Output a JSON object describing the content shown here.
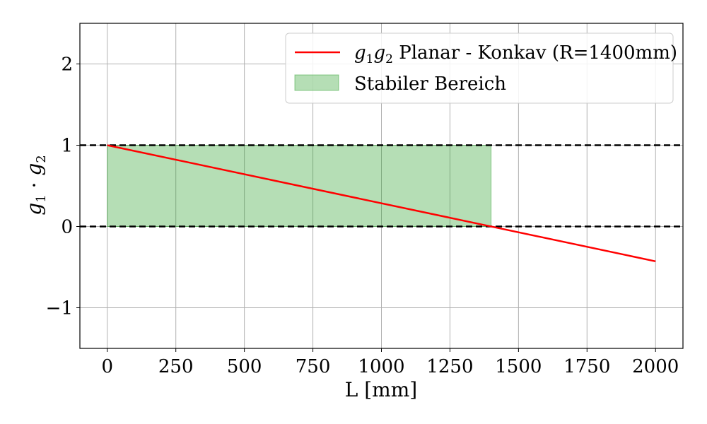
{
  "chart_data": {
    "type": "line",
    "xlabel": "L [mm]",
    "ylabel": "g₁ · g₂",
    "xlim": [
      -100,
      2100
    ],
    "ylim": [
      -1.5,
      2.5
    ],
    "xticks": [
      0,
      250,
      500,
      750,
      1000,
      1250,
      1500,
      1750,
      2000
    ],
    "xtick_labels": [
      "0",
      "250",
      "500",
      "750",
      "1000",
      "1250",
      "1500",
      "1750",
      "2000"
    ],
    "yticks": [
      -1,
      0,
      1,
      2
    ],
    "ytick_labels": [
      "−1",
      "0",
      "1",
      "2"
    ],
    "grid": true,
    "legend_position": "top-right",
    "series": [
      {
        "name": "g₁g₂ Planar - Konkav (R=1400mm)",
        "legend_label": {
          "var1": "g",
          "sub1": "1",
          "var2": "g",
          "sub2": "2",
          "rest": " Planar - Konkav (R=1400mm)"
        },
        "kind": "line",
        "color": "#ff0000",
        "x": [
          0,
          2000
        ],
        "y": [
          1.0,
          -0.4286
        ]
      },
      {
        "name": "Stabiler Bereich",
        "kind": "fill_between",
        "color": "#2ca02c",
        "opacity": 0.35,
        "x": [
          0,
          1400
        ],
        "y_low": 0,
        "y_high": 1
      }
    ],
    "reference_lines": [
      {
        "orientation": "horizontal",
        "y": 1,
        "style": "dashed",
        "color": "#000000"
      },
      {
        "orientation": "horizontal",
        "y": 0,
        "style": "dashed",
        "color": "#000000"
      }
    ]
  }
}
